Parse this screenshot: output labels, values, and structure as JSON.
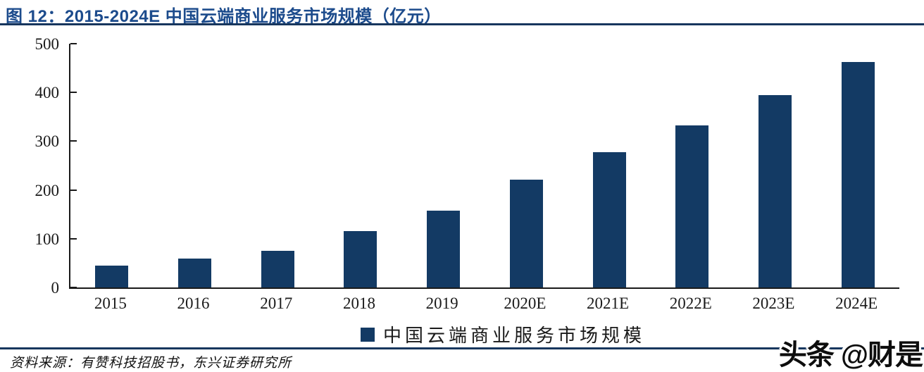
{
  "figure": {
    "title": "图 12：2015-2024E 中国云端商业服务市场规模（亿元）",
    "source": "资料来源：有赞科技招股书，东兴证券研究所",
    "watermark": "头条 @财是"
  },
  "colors": {
    "bar": "#133a64",
    "title_text": "#1c4b8c",
    "rule": "#17365d",
    "axis": "#1a1a1a"
  },
  "chart_data": {
    "type": "bar",
    "categories": [
      "2015",
      "2016",
      "2017",
      "2018",
      "2019",
      "2020E",
      "2021E",
      "2022E",
      "2023E",
      "2024E"
    ],
    "values": [
      45,
      59,
      75,
      116,
      157,
      221,
      277,
      333,
      394,
      463
    ],
    "title": "图 12：2015-2024E 中国云端商业服务市场规模（亿元）",
    "legend": [
      "中国云端商业服务市场规模"
    ],
    "xlabel": "",
    "ylabel": "",
    "ylim": [
      0,
      500
    ],
    "yticks": [
      0,
      100,
      200,
      300,
      400,
      500
    ],
    "grid": false,
    "legend_position": "bottom-center"
  }
}
